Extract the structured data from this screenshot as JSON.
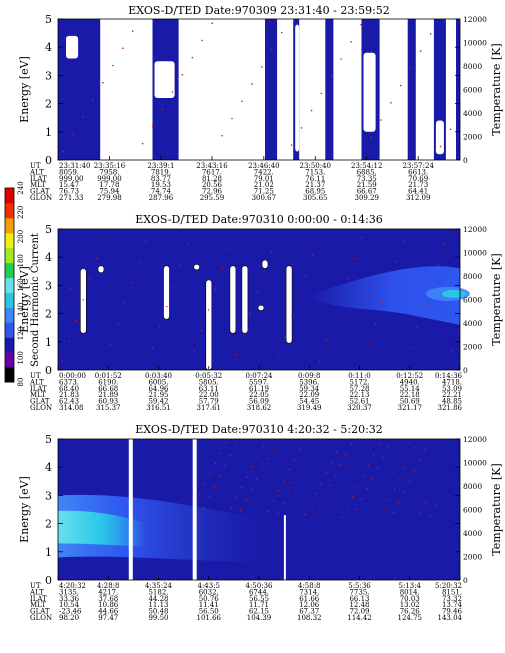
{
  "colors": {
    "background_fill": "#ffffff",
    "dark_blue": "#1a1aa8",
    "mid_blue": "#2f56f0",
    "light_blue": "#3f86f6",
    "cyan": "#29c6e8",
    "light_cyan": "#66e0ee",
    "red_contour": "#c8201a",
    "frame": "#000000"
  },
  "colorbar": {
    "label": "Second Harmonic Current",
    "ticks": [
      "80",
      "100",
      "120",
      "140",
      "160",
      "180",
      "200",
      "220",
      "240"
    ],
    "stops": [
      "#000000",
      "#6a00aa",
      "#1a1aa8",
      "#2f56f0",
      "#3f86f6",
      "#29c6e8",
      "#66e0ee",
      "#1fd050",
      "#a0ea20",
      "#f0f010",
      "#f0a000",
      "#f03000",
      "#e00000"
    ]
  },
  "row_labels": [
    "UT",
    "ALT",
    "ILAT",
    "MLT",
    "GLAT",
    "GLON"
  ],
  "chart_data": [
    {
      "type": "heatmap",
      "title": "EXOS-D/TED  Date:970309  23:31:40 - 23:59:52",
      "ylabel": "Energy [eV]",
      "ylabel_right": "Temperature [K]",
      "ylim": [
        0,
        5
      ],
      "y2lim": [
        0,
        12000
      ],
      "yticks": [
        "0",
        "1",
        "2",
        "3",
        "4",
        "5"
      ],
      "y2ticks": [
        "0",
        "2000",
        "4000",
        "6000",
        "8000",
        "10000",
        "12000"
      ],
      "columns": [
        {
          "UT": "23:31:40",
          "ALT": "8059.",
          "ILAT": "999.00",
          "MLT": "15.47",
          "GLAT": "76.73",
          "GLON": "271.33"
        },
        {
          "UT": "23:35:16",
          "ALT": "7958.",
          "ILAT": "999.00",
          "MLT": "17.78",
          "GLAT": "75.94",
          "GLON": "279.98"
        },
        {
          "UT": "23:39:1",
          "ALT": "7819.",
          "ILAT": "83.77",
          "MLT": "19.53",
          "GLAT": "74.74",
          "GLON": "287.96"
        },
        {
          "UT": "23:43:16",
          "ALT": "7617.",
          "ILAT": "81.28",
          "MLT": "20.56",
          "GLAT": "72.96",
          "GLON": "295.59"
        },
        {
          "UT": "23:46:40",
          "ALT": "7422.",
          "ILAT": "79.01",
          "MLT": "21.02",
          "GLAT": "71.25",
          "GLON": "300.67"
        },
        {
          "UT": "23:50:40",
          "ALT": "7153.",
          "ILAT": "76.11",
          "MLT": "21.37",
          "GLAT": "68.95",
          "GLON": "305.65"
        },
        {
          "UT": "23:54:12",
          "ALT": "6885.",
          "ILAT": "73.35",
          "MLT": "21.59",
          "GLAT": "66.67",
          "GLON": "309.29"
        },
        {
          "UT": "23:57:24",
          "ALT": "6613.",
          "ILAT": "70.69",
          "MLT": "21.73",
          "GLAT": "64.41",
          "GLON": "312.09"
        }
      ]
    },
    {
      "type": "heatmap",
      "title": "EXOS-D/TED  Date:970310  0:00:00 - 0:14:36",
      "ylabel": "Energy [eV]",
      "ylabel_right": "Temperature [K]",
      "ylim": [
        0,
        5
      ],
      "y2lim": [
        0,
        12000
      ],
      "yticks": [
        "0",
        "1",
        "2",
        "3",
        "4",
        "5"
      ],
      "y2ticks": [
        "0",
        "2000",
        "4000",
        "6000",
        "8000",
        "10000",
        "12000"
      ],
      "columns": [
        {
          "UT": "0:00:00",
          "ALT": "6373.",
          "ILAT": "68.40",
          "MLT": "21.83",
          "GLAT": "62.43",
          "GLON": "314.08"
        },
        {
          "UT": "0:01:52",
          "ALT": "6190.",
          "ILAT": "66.68",
          "MLT": "21.89",
          "GLAT": "60.93",
          "GLON": "315.37"
        },
        {
          "UT": "0:03:40",
          "ALT": "6005.",
          "ILAT": "64.96",
          "MLT": "21.95",
          "GLAT": "59.42",
          "GLON": "316.51"
        },
        {
          "UT": "0:05:32",
          "ALT": "5805.",
          "ILAT": "63.11",
          "MLT": "22.00",
          "GLAT": "57.79",
          "GLON": "317.61"
        },
        {
          "UT": "0:07:24",
          "ALT": "5597.",
          "ILAT": "61.19",
          "MLT": "22.05",
          "GLAT": "56.09",
          "GLON": "318.62"
        },
        {
          "UT": "0:09:8",
          "ALT": "5396.",
          "ILAT": "59.34",
          "MLT": "22.09",
          "GLAT": "54.45",
          "GLON": "319.49"
        },
        {
          "UT": "0:11:0",
          "ALT": "5172.",
          "ILAT": "57.28",
          "MLT": "22.13",
          "GLAT": "52.61",
          "GLON": "320.37"
        },
        {
          "UT": "0:12:52",
          "ALT": "4940.",
          "ILAT": "55.14",
          "MLT": "22.18",
          "GLAT": "50.69",
          "GLON": "321.17"
        },
        {
          "UT": "0:14:36",
          "ALT": "4718.",
          "ILAT": "53.09",
          "MLT": "22.21",
          "GLAT": "48.85",
          "GLON": "321.86"
        }
      ]
    },
    {
      "type": "heatmap",
      "title": "EXOS-D/TED  Date:970310  4:20:32 - 5:20:32",
      "ylabel": "Energy [eV]",
      "ylabel_right": "Temperature [K]",
      "ylim": [
        0,
        5
      ],
      "y2lim": [
        0,
        12000
      ],
      "yticks": [
        "0",
        "1",
        "2",
        "3",
        "4",
        "5"
      ],
      "y2ticks": [
        "0",
        "2000",
        "4000",
        "6000",
        "8000",
        "10000",
        "12000"
      ],
      "columns": [
        {
          "UT": "4:20:32",
          "ALT": "3135.",
          "ILAT": "33.36",
          "MLT": "10.54",
          "GLAT": "-23.46",
          "GLON": "98.20"
        },
        {
          "UT": "4:28:8",
          "ALT": "4217.",
          "ILAT": "37.68",
          "MLT": "10.86",
          "GLAT": "44.66",
          "GLON": "97.47"
        },
        {
          "UT": "4:35:24",
          "ALT": "5182.",
          "ILAT": "44.28",
          "MLT": "11.13",
          "GLAT": "50.48",
          "GLON": "99.50"
        },
        {
          "UT": "4:43:5",
          "ALT": "6032.",
          "ILAT": "50.76",
          "MLT": "11.41",
          "GLAT": "56.50",
          "GLON": "101.66"
        },
        {
          "UT": "4:50:36",
          "ALT": "6744.",
          "ILAT": "56.55",
          "MLT": "11.71",
          "GLAT": "62.15",
          "GLON": "104.39"
        },
        {
          "UT": "4:58:8",
          "ALT": "7314.",
          "ILAT": "61.66",
          "MLT": "12.06",
          "GLAT": "67.37",
          "GLON": "108.32"
        },
        {
          "UT": "5:5:36",
          "ALT": "7735.",
          "ILAT": "66.13",
          "MLT": "12.48",
          "GLAT": "72.09",
          "GLON": "114.42"
        },
        {
          "UT": "5:13:4",
          "ALT": "8014.",
          "ILAT": "70.03",
          "MLT": "13.02",
          "GLAT": "76.26",
          "GLON": "124.75"
        },
        {
          "UT": "5:20:32",
          "ALT": "8151.",
          "ILAT": "73.32",
          "MLT": "13.74",
          "GLAT": "79.46",
          "GLON": "143.04"
        }
      ]
    }
  ]
}
